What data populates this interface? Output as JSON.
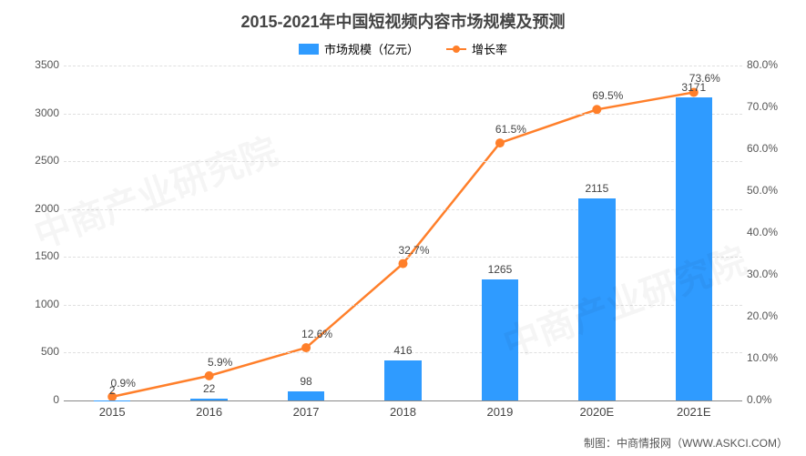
{
  "chart": {
    "type": "bar+line",
    "title": "2015-2021年中国短视频内容市场规模及预测",
    "title_fontsize": 18,
    "title_color": "#444444",
    "background_color": "#ffffff",
    "grid_color": "#e0e0e0",
    "credit": "制图：中商情报网（WWW.ASKCI.COM）",
    "legend": {
      "bar_label": "市场规模（亿元）",
      "line_label": "增长率"
    },
    "categories": [
      "2015",
      "2016",
      "2017",
      "2018",
      "2019",
      "2020E",
      "2021E"
    ],
    "bars": {
      "values": [
        2,
        22,
        98,
        416,
        1265,
        2115,
        3171
      ],
      "labels": [
        "2",
        "22",
        "98",
        "416",
        "1265",
        "2115",
        "3171"
      ],
      "color": "#2f9bff",
      "width_ratio": 0.38
    },
    "line": {
      "values": [
        0.9,
        5.9,
        12.6,
        32.7,
        61.5,
        69.5,
        73.6
      ],
      "labels": [
        "0.9%",
        "5.9%",
        "12.6%",
        "32.7%",
        "61.5%",
        "69.5%",
        "73.6%"
      ],
      "color": "#ff7f2a",
      "line_width": 2.5,
      "marker_size": 5
    },
    "y_left": {
      "min": 0,
      "max": 3500,
      "step": 500,
      "label_fontsize": 12
    },
    "y_right": {
      "min": 0,
      "max": 80,
      "step": 10,
      "suffix": "%",
      "decimals": 1,
      "label_fontsize": 12
    },
    "watermark_text": "中商产业研究院"
  }
}
